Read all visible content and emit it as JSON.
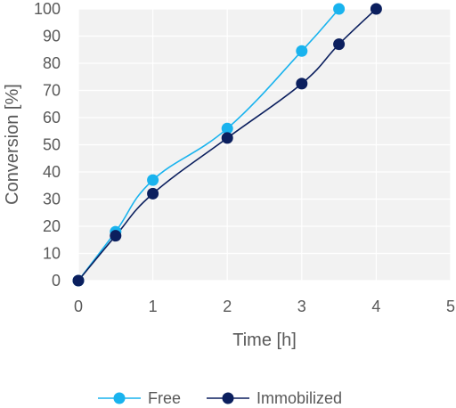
{
  "chart_data": {
    "type": "line",
    "title": "",
    "xlabel": "Time [h]",
    "ylabel": "Conversion [%]",
    "xlim": [
      0,
      5
    ],
    "ylim": [
      0,
      100
    ],
    "xticks": [
      0,
      1,
      2,
      3,
      4,
      5
    ],
    "yticks": [
      0,
      10,
      20,
      30,
      40,
      50,
      60,
      70,
      80,
      90,
      100
    ],
    "grid": true,
    "legend": "bottom",
    "series": [
      {
        "name": "Free",
        "color": "#19b3ee",
        "x": [
          0,
          0.5,
          1,
          2,
          3,
          3.5
        ],
        "y": [
          0,
          18,
          37,
          56,
          84.5,
          100
        ]
      },
      {
        "name": "Immobilized",
        "color": "#0b1f5e",
        "x": [
          0,
          0.5,
          1,
          2,
          3,
          3.5,
          4
        ],
        "y": [
          0,
          16.5,
          32,
          52.5,
          72.5,
          87,
          100
        ]
      }
    ]
  }
}
